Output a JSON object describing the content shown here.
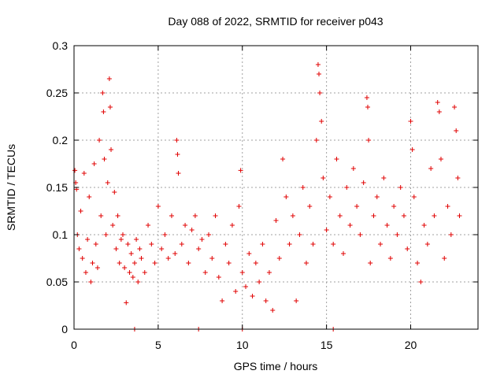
{
  "chart_data": {
    "type": "scatter",
    "title": "Day 088 of 2022, SRMTID for receiver p043",
    "xlabel": "GPS time / hours",
    "ylabel": "SRMTID / TECUs",
    "xlim": [
      0,
      24
    ],
    "ylim": [
      0,
      0.3
    ],
    "x_ticks": [
      0,
      5,
      10,
      15,
      20
    ],
    "x_tick_labels": [
      "0",
      "5",
      "10",
      "15",
      "20"
    ],
    "y_ticks": [
      0,
      0.05,
      0.1,
      0.15,
      0.2,
      0.25,
      0.3
    ],
    "y_tick_labels": [
      "0",
      "0.05",
      "0.1",
      "0.15",
      "0.2",
      "0.25",
      "0.3"
    ],
    "grid": true,
    "marker": "plus",
    "colors": {
      "series": "#e00000",
      "axis": "#000000",
      "grid": "#a0a0a0"
    },
    "series": [
      {
        "name": "SRMTID",
        "points": [
          [
            0.05,
            0.168
          ],
          [
            0.1,
            0.155
          ],
          [
            0.15,
            0.148
          ],
          [
            0.2,
            0.1
          ],
          [
            0.3,
            0.085
          ],
          [
            0.4,
            0.125
          ],
          [
            0.5,
            0.075
          ],
          [
            0.6,
            0.165
          ],
          [
            0.7,
            0.06
          ],
          [
            0.8,
            0.095
          ],
          [
            0.9,
            0.14
          ],
          [
            1.0,
            0.05
          ],
          [
            1.1,
            0.07
          ],
          [
            1.2,
            0.175
          ],
          [
            1.3,
            0.09
          ],
          [
            1.4,
            0.065
          ],
          [
            1.5,
            0.2
          ],
          [
            1.6,
            0.12
          ],
          [
            1.7,
            0.25
          ],
          [
            1.75,
            0.23
          ],
          [
            1.8,
            0.18
          ],
          [
            1.9,
            0.1
          ],
          [
            2.0,
            0.155
          ],
          [
            2.1,
            0.265
          ],
          [
            2.15,
            0.235
          ],
          [
            2.2,
            0.19
          ],
          [
            2.3,
            0.11
          ],
          [
            2.4,
            0.145
          ],
          [
            2.5,
            0.085
          ],
          [
            2.6,
            0.12
          ],
          [
            2.7,
            0.07
          ],
          [
            2.8,
            0.095
          ],
          [
            2.9,
            0.1
          ],
          [
            3.0,
            0.065
          ],
          [
            3.1,
            0.028
          ],
          [
            3.2,
            0.09
          ],
          [
            3.3,
            0.06
          ],
          [
            3.4,
            0.08
          ],
          [
            3.5,
            0.055
          ],
          [
            3.6,
            0.07
          ],
          [
            3.7,
            0.095
          ],
          [
            3.8,
            0.05
          ],
          [
            3.9,
            0.085
          ],
          [
            4.0,
            0.075
          ],
          [
            4.2,
            0.06
          ],
          [
            4.4,
            0.11
          ],
          [
            4.6,
            0.09
          ],
          [
            4.8,
            0.07
          ],
          [
            5.0,
            0.13
          ],
          [
            5.2,
            0.085
          ],
          [
            5.4,
            0.1
          ],
          [
            5.6,
            0.075
          ],
          [
            5.8,
            0.12
          ],
          [
            6.0,
            0.08
          ],
          [
            6.1,
            0.2
          ],
          [
            6.15,
            0.185
          ],
          [
            6.2,
            0.165
          ],
          [
            6.4,
            0.09
          ],
          [
            6.6,
            0.11
          ],
          [
            6.8,
            0.07
          ],
          [
            7.0,
            0.105
          ],
          [
            7.2,
            0.12
          ],
          [
            7.4,
            0.085
          ],
          [
            7.6,
            0.095
          ],
          [
            7.8,
            0.06
          ],
          [
            8.0,
            0.1
          ],
          [
            8.2,
            0.075
          ],
          [
            8.4,
            0.12
          ],
          [
            8.6,
            0.055
          ],
          [
            8.8,
            0.03
          ],
          [
            9.0,
            0.09
          ],
          [
            9.2,
            0.07
          ],
          [
            9.4,
            0.11
          ],
          [
            9.6,
            0.04
          ],
          [
            9.8,
            0.13
          ],
          [
            9.9,
            0.168
          ],
          [
            10.0,
            0.06
          ],
          [
            10.2,
            0.045
          ],
          [
            10.4,
            0.08
          ],
          [
            10.6,
            0.035
          ],
          [
            10.8,
            0.07
          ],
          [
            11.0,
            0.05
          ],
          [
            11.2,
            0.09
          ],
          [
            11.4,
            0.03
          ],
          [
            11.6,
            0.06
          ],
          [
            11.8,
            0.02
          ],
          [
            12.0,
            0.115
          ],
          [
            12.2,
            0.075
          ],
          [
            12.4,
            0.18
          ],
          [
            12.6,
            0.14
          ],
          [
            12.8,
            0.09
          ],
          [
            13.0,
            0.12
          ],
          [
            13.2,
            0.03
          ],
          [
            13.4,
            0.1
          ],
          [
            13.6,
            0.15
          ],
          [
            13.8,
            0.07
          ],
          [
            14.0,
            0.13
          ],
          [
            14.2,
            0.09
          ],
          [
            14.4,
            0.2
          ],
          [
            14.5,
            0.28
          ],
          [
            14.55,
            0.27
          ],
          [
            14.6,
            0.25
          ],
          [
            14.7,
            0.22
          ],
          [
            14.8,
            0.16
          ],
          [
            15.0,
            0.105
          ],
          [
            15.2,
            0.14
          ],
          [
            15.4,
            0.09
          ],
          [
            15.6,
            0.18
          ],
          [
            15.8,
            0.12
          ],
          [
            16.0,
            0.08
          ],
          [
            16.2,
            0.15
          ],
          [
            16.4,
            0.11
          ],
          [
            16.6,
            0.17
          ],
          [
            16.8,
            0.13
          ],
          [
            17.0,
            0.1
          ],
          [
            17.2,
            0.155
          ],
          [
            17.4,
            0.245
          ],
          [
            17.45,
            0.235
          ],
          [
            17.5,
            0.2
          ],
          [
            17.6,
            0.07
          ],
          [
            17.8,
            0.12
          ],
          [
            18.0,
            0.14
          ],
          [
            18.2,
            0.09
          ],
          [
            18.4,
            0.16
          ],
          [
            18.6,
            0.11
          ],
          [
            18.8,
            0.075
          ],
          [
            19.0,
            0.13
          ],
          [
            19.2,
            0.1
          ],
          [
            19.4,
            0.15
          ],
          [
            19.6,
            0.12
          ],
          [
            19.8,
            0.085
          ],
          [
            20.0,
            0.22
          ],
          [
            20.1,
            0.19
          ],
          [
            20.2,
            0.14
          ],
          [
            20.4,
            0.07
          ],
          [
            20.6,
            0.05
          ],
          [
            20.8,
            0.11
          ],
          [
            21.0,
            0.09
          ],
          [
            21.2,
            0.17
          ],
          [
            21.4,
            0.12
          ],
          [
            21.6,
            0.24
          ],
          [
            21.7,
            0.23
          ],
          [
            21.8,
            0.18
          ],
          [
            22.0,
            0.075
          ],
          [
            22.2,
            0.13
          ],
          [
            22.4,
            0.1
          ],
          [
            22.6,
            0.235
          ],
          [
            22.7,
            0.21
          ],
          [
            22.8,
            0.16
          ],
          [
            22.9,
            0.12
          ],
          [
            3.6,
            0.0
          ],
          [
            7.4,
            0.0
          ],
          [
            10.0,
            0.0
          ],
          [
            15.4,
            0.0
          ]
        ]
      }
    ]
  }
}
